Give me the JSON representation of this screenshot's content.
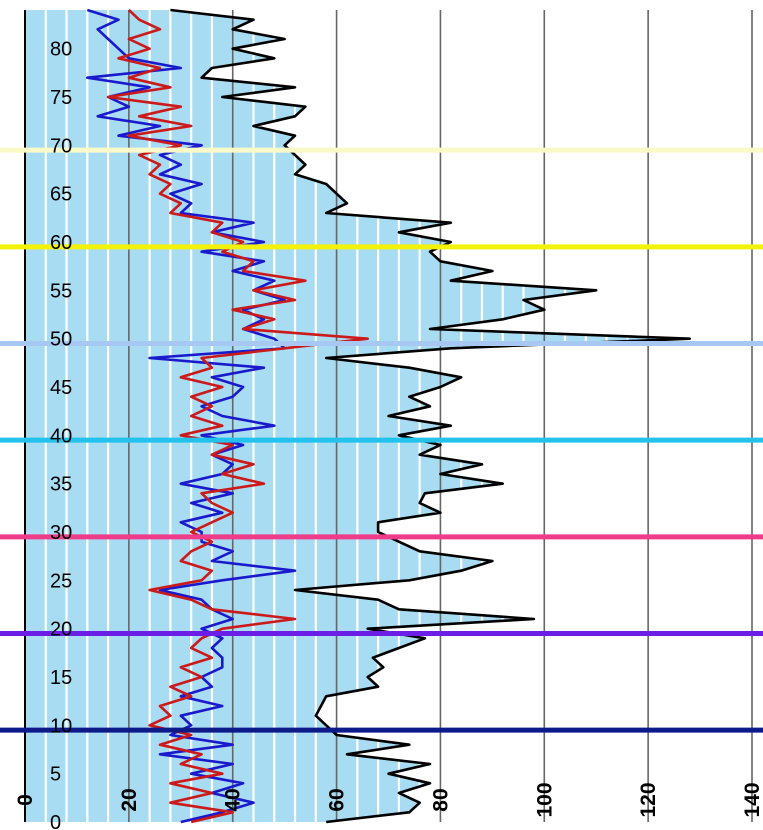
{
  "chart_data": {
    "type": "area",
    "orientation": "horizontal",
    "x_axis": {
      "min": 0,
      "max": 140,
      "ticks": [
        0,
        20,
        40,
        60,
        80,
        100,
        120,
        140
      ]
    },
    "y_axis": {
      "min": 0,
      "max": 84,
      "ticks": [
        0,
        5,
        10,
        15,
        20,
        25,
        30,
        35,
        40,
        45,
        50,
        55,
        60,
        65,
        70,
        75,
        80
      ]
    },
    "grid": {
      "vertical_major": true,
      "vertical_minor": true
    },
    "area_color": "#a8dcf2",
    "series": [
      {
        "color": "#000000",
        "points": [
          [
            58,
            0
          ],
          [
            74,
            1
          ],
          [
            76,
            2
          ],
          [
            72,
            3
          ],
          [
            78,
            4
          ],
          [
            70,
            5
          ],
          [
            78,
            6
          ],
          [
            62,
            7
          ],
          [
            74,
            8
          ],
          [
            60,
            9
          ],
          [
            58,
            10
          ],
          [
            56,
            11
          ],
          [
            57,
            12
          ],
          [
            58,
            13
          ],
          [
            68,
            14
          ],
          [
            66,
            15
          ],
          [
            69,
            16
          ],
          [
            67,
            17
          ],
          [
            72,
            18
          ],
          [
            77,
            19
          ],
          [
            66,
            20
          ],
          [
            98,
            21
          ],
          [
            72,
            22
          ],
          [
            68,
            23
          ],
          [
            52,
            24
          ],
          [
            74,
            25
          ],
          [
            84,
            26
          ],
          [
            90,
            27
          ],
          [
            76,
            28
          ],
          [
            72,
            29
          ],
          [
            68,
            30
          ],
          [
            68,
            31
          ],
          [
            80,
            32
          ],
          [
            76,
            33
          ],
          [
            77,
            34
          ],
          [
            92,
            35
          ],
          [
            80,
            36
          ],
          [
            88,
            37
          ],
          [
            76,
            38
          ],
          [
            80,
            39
          ],
          [
            72,
            40
          ],
          [
            82,
            41
          ],
          [
            70,
            42
          ],
          [
            78,
            43
          ],
          [
            74,
            44
          ],
          [
            80,
            45
          ],
          [
            84,
            46
          ],
          [
            74,
            47
          ],
          [
            58,
            48
          ],
          [
            82,
            49
          ],
          [
            128,
            50
          ],
          [
            78,
            51
          ],
          [
            92,
            52
          ],
          [
            100,
            53
          ],
          [
            96,
            54
          ],
          [
            110,
            55
          ],
          [
            82,
            56
          ],
          [
            90,
            57
          ],
          [
            80,
            58
          ],
          [
            78,
            59
          ],
          [
            82,
            60
          ],
          [
            72,
            61
          ],
          [
            82,
            62
          ],
          [
            58,
            63
          ],
          [
            62,
            64
          ],
          [
            60,
            65
          ],
          [
            58,
            66
          ],
          [
            52,
            67
          ],
          [
            54,
            68
          ],
          [
            52,
            69
          ],
          [
            50,
            70
          ],
          [
            52,
            71
          ],
          [
            44,
            72
          ],
          [
            52,
            73
          ],
          [
            54,
            74
          ],
          [
            38,
            75
          ],
          [
            52,
            76
          ],
          [
            34,
            77
          ],
          [
            36,
            78
          ],
          [
            48,
            79
          ],
          [
            40,
            80
          ],
          [
            50,
            81
          ],
          [
            40,
            82
          ],
          [
            44,
            83
          ],
          [
            28,
            84
          ]
        ]
      },
      {
        "color": "#1a1acc",
        "points": [
          [
            30,
            0
          ],
          [
            38,
            1
          ],
          [
            44,
            2
          ],
          [
            36,
            3
          ],
          [
            42,
            4
          ],
          [
            32,
            5
          ],
          [
            40,
            6
          ],
          [
            26,
            7
          ],
          [
            40,
            8
          ],
          [
            28,
            9
          ],
          [
            32,
            10
          ],
          [
            30,
            11
          ],
          [
            38,
            12
          ],
          [
            30,
            13
          ],
          [
            36,
            14
          ],
          [
            34,
            15
          ],
          [
            38,
            16
          ],
          [
            38,
            17
          ],
          [
            36,
            18
          ],
          [
            38,
            19
          ],
          [
            34,
            20
          ],
          [
            40,
            21
          ],
          [
            36,
            22
          ],
          [
            34,
            23
          ],
          [
            26,
            24
          ],
          [
            38,
            25
          ],
          [
            52,
            26
          ],
          [
            36,
            27
          ],
          [
            40,
            28
          ],
          [
            34,
            29
          ],
          [
            34,
            30
          ],
          [
            30,
            31
          ],
          [
            38,
            32
          ],
          [
            32,
            33
          ],
          [
            40,
            34
          ],
          [
            30,
            35
          ],
          [
            38,
            36
          ],
          [
            40,
            37
          ],
          [
            36,
            38
          ],
          [
            42,
            39
          ],
          [
            34,
            40
          ],
          [
            48,
            41
          ],
          [
            38,
            42
          ],
          [
            34,
            43
          ],
          [
            40,
            44
          ],
          [
            42,
            45
          ],
          [
            36,
            46
          ],
          [
            46,
            47
          ],
          [
            24,
            48
          ],
          [
            50,
            49
          ],
          [
            48,
            50
          ],
          [
            42,
            51
          ],
          [
            46,
            52
          ],
          [
            42,
            53
          ],
          [
            50,
            54
          ],
          [
            44,
            55
          ],
          [
            48,
            56
          ],
          [
            40,
            57
          ],
          [
            46,
            58
          ],
          [
            34,
            59
          ],
          [
            46,
            60
          ],
          [
            36,
            61
          ],
          [
            44,
            62
          ],
          [
            30,
            63
          ],
          [
            32,
            64
          ],
          [
            28,
            65
          ],
          [
            34,
            66
          ],
          [
            26,
            67
          ],
          [
            30,
            68
          ],
          [
            26,
            69
          ],
          [
            34,
            70
          ],
          [
            18,
            71
          ],
          [
            26,
            72
          ],
          [
            14,
            73
          ],
          [
            20,
            74
          ],
          [
            16,
            75
          ],
          [
            24,
            76
          ],
          [
            12,
            77
          ],
          [
            30,
            78
          ],
          [
            20,
            79
          ],
          [
            18,
            80
          ],
          [
            16,
            81
          ],
          [
            14,
            82
          ],
          [
            18,
            83
          ],
          [
            12,
            84
          ]
        ]
      },
      {
        "color": "#cc1a1a",
        "points": [
          [
            32,
            0
          ],
          [
            40,
            1
          ],
          [
            28,
            2
          ],
          [
            36,
            3
          ],
          [
            28,
            4
          ],
          [
            38,
            5
          ],
          [
            30,
            6
          ],
          [
            34,
            7
          ],
          [
            26,
            8
          ],
          [
            32,
            9
          ],
          [
            24,
            10
          ],
          [
            28,
            11
          ],
          [
            26,
            12
          ],
          [
            32,
            13
          ],
          [
            28,
            14
          ],
          [
            34,
            15
          ],
          [
            30,
            16
          ],
          [
            36,
            17
          ],
          [
            32,
            18
          ],
          [
            34,
            19
          ],
          [
            38,
            20
          ],
          [
            52,
            21
          ],
          [
            36,
            22
          ],
          [
            32,
            23
          ],
          [
            24,
            24
          ],
          [
            34,
            25
          ],
          [
            36,
            26
          ],
          [
            30,
            27
          ],
          [
            32,
            28
          ],
          [
            36,
            29
          ],
          [
            32,
            30
          ],
          [
            36,
            31
          ],
          [
            40,
            32
          ],
          [
            36,
            33
          ],
          [
            34,
            34
          ],
          [
            46,
            35
          ],
          [
            38,
            36
          ],
          [
            44,
            37
          ],
          [
            36,
            38
          ],
          [
            40,
            39
          ],
          [
            30,
            40
          ],
          [
            38,
            41
          ],
          [
            32,
            42
          ],
          [
            36,
            43
          ],
          [
            32,
            44
          ],
          [
            38,
            45
          ],
          [
            30,
            46
          ],
          [
            36,
            47
          ],
          [
            34,
            48
          ],
          [
            50,
            49
          ],
          [
            66,
            50
          ],
          [
            42,
            51
          ],
          [
            48,
            52
          ],
          [
            40,
            53
          ],
          [
            52,
            54
          ],
          [
            44,
            55
          ],
          [
            54,
            56
          ],
          [
            42,
            57
          ],
          [
            44,
            58
          ],
          [
            38,
            59
          ],
          [
            42,
            60
          ],
          [
            36,
            61
          ],
          [
            38,
            62
          ],
          [
            28,
            63
          ],
          [
            30,
            64
          ],
          [
            26,
            65
          ],
          [
            28,
            66
          ],
          [
            24,
            67
          ],
          [
            26,
            68
          ],
          [
            22,
            69
          ],
          [
            30,
            70
          ],
          [
            20,
            71
          ],
          [
            32,
            72
          ],
          [
            22,
            73
          ],
          [
            30,
            74
          ],
          [
            16,
            75
          ],
          [
            28,
            76
          ],
          [
            20,
            77
          ],
          [
            26,
            78
          ],
          [
            18,
            79
          ],
          [
            24,
            80
          ],
          [
            20,
            81
          ],
          [
            26,
            82
          ],
          [
            22,
            83
          ],
          [
            20,
            84
          ]
        ]
      }
    ],
    "reference_lines": [
      {
        "y": 9.5,
        "color": "#0d1a8a"
      },
      {
        "y": 19.5,
        "color": "#6a1ee6"
      },
      {
        "y": 29.5,
        "color": "#ee3b8a"
      },
      {
        "y": 39.5,
        "color": "#22c2ec"
      },
      {
        "y": 49.5,
        "color": "#a6c8f2"
      },
      {
        "y": 59.5,
        "color": "#f2f20a"
      },
      {
        "y": 69.5,
        "color": "#fafac8"
      }
    ]
  }
}
